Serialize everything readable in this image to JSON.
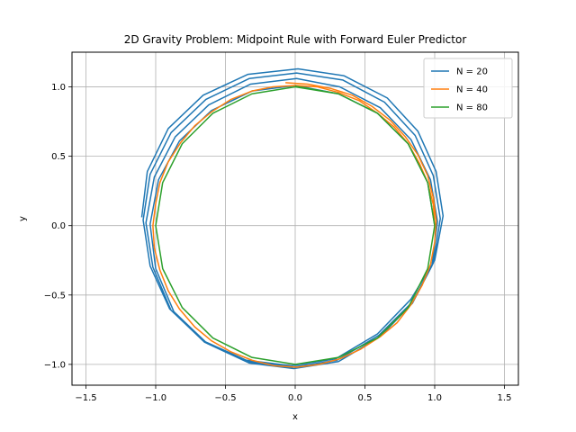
{
  "chart_data": {
    "type": "line",
    "title": "2D Gravity Problem: Midpoint Rule with Forward Euler Predictor",
    "xlabel": "x",
    "ylabel": "y",
    "xlim": [
      -1.6,
      1.6
    ],
    "ylim": [
      -1.15,
      1.25
    ],
    "xticks": [
      -1.5,
      -1.0,
      -0.5,
      0.0,
      0.5,
      1.0,
      1.5
    ],
    "xtick_labels": [
      "−1.5",
      "−1.0",
      "−0.5",
      "0.0",
      "0.5",
      "1.0",
      "1.5"
    ],
    "yticks": [
      -1.0,
      -0.5,
      0.0,
      0.5,
      1.0
    ],
    "ytick_labels": [
      "−1.0",
      "−0.5",
      "0.0",
      "0.5",
      "1.0"
    ],
    "grid": true,
    "legend_position": "top-right",
    "series": [
      {
        "name": "N = 20",
        "color": "#1f77b4",
        "orbit_points": [
          [
            1.0,
            0.0
          ],
          [
            0.95,
            0.31
          ],
          [
            0.81,
            0.59
          ],
          [
            0.59,
            0.81
          ],
          [
            0.31,
            0.95
          ],
          [
            0.0,
            1.01
          ],
          [
            -0.31,
            0.97
          ],
          [
            -0.6,
            0.83
          ],
          [
            -0.83,
            0.61
          ],
          [
            -0.98,
            0.33
          ],
          [
            -1.04,
            0.01
          ],
          [
            -1.0,
            -0.31
          ],
          [
            -0.87,
            -0.62
          ],
          [
            -0.63,
            -0.85
          ],
          [
            -0.33,
            -0.99
          ],
          [
            -0.01,
            -1.03
          ],
          [
            0.31,
            -0.98
          ],
          [
            0.61,
            -0.8
          ],
          [
            0.84,
            -0.56
          ],
          [
            0.98,
            -0.29
          ],
          [
            1.02,
            0.03
          ],
          [
            0.97,
            0.33
          ],
          [
            0.83,
            0.62
          ],
          [
            0.61,
            0.85
          ],
          [
            0.32,
            1.0
          ],
          [
            0.01,
            1.06
          ],
          [
            -0.32,
            1.02
          ],
          [
            -0.62,
            0.87
          ],
          [
            -0.86,
            0.64
          ],
          [
            -1.01,
            0.35
          ],
          [
            -1.07,
            0.02
          ],
          [
            -1.02,
            -0.3
          ],
          [
            -0.89,
            -0.61
          ],
          [
            -0.65,
            -0.84
          ],
          [
            -0.34,
            -0.98
          ],
          [
            -0.02,
            -1.02
          ],
          [
            0.3,
            -0.97
          ],
          [
            0.6,
            -0.79
          ],
          [
            0.84,
            -0.55
          ],
          [
            0.99,
            -0.27
          ],
          [
            1.04,
            0.05
          ],
          [
            0.99,
            0.36
          ],
          [
            0.86,
            0.65
          ],
          [
            0.64,
            0.89
          ],
          [
            0.34,
            1.05
          ],
          [
            0.01,
            1.1
          ],
          [
            -0.33,
            1.06
          ],
          [
            -0.64,
            0.91
          ],
          [
            -0.89,
            0.67
          ],
          [
            -1.04,
            0.37
          ],
          [
            -1.09,
            0.04
          ],
          [
            -1.04,
            -0.29
          ],
          [
            -0.9,
            -0.6
          ],
          [
            -0.66,
            -0.83
          ],
          [
            -0.35,
            -0.97
          ],
          [
            -0.03,
            -1.01
          ],
          [
            0.29,
            -0.96
          ],
          [
            0.59,
            -0.78
          ],
          [
            0.83,
            -0.53
          ],
          [
            1.0,
            -0.25
          ],
          [
            1.06,
            0.07
          ],
          [
            1.01,
            0.39
          ],
          [
            0.88,
            0.68
          ],
          [
            0.66,
            0.92
          ],
          [
            0.35,
            1.08
          ],
          [
            0.02,
            1.13
          ],
          [
            -0.34,
            1.09
          ],
          [
            -0.66,
            0.94
          ],
          [
            -0.91,
            0.7
          ],
          [
            -1.06,
            0.39
          ],
          [
            -1.1,
            0.06
          ]
        ]
      },
      {
        "name": "N = 40",
        "color": "#ff7f0e",
        "orbit_points": [
          [
            1.0,
            0.0
          ],
          [
            0.99,
            0.15
          ],
          [
            0.95,
            0.31
          ],
          [
            0.89,
            0.45
          ],
          [
            0.81,
            0.59
          ],
          [
            0.71,
            0.71
          ],
          [
            0.59,
            0.81
          ],
          [
            0.46,
            0.9
          ],
          [
            0.31,
            0.96
          ],
          [
            0.16,
            1.0
          ],
          [
            0.0,
            1.01
          ],
          [
            -0.16,
            1.0
          ],
          [
            -0.31,
            0.97
          ],
          [
            -0.46,
            0.91
          ],
          [
            -0.6,
            0.82
          ],
          [
            -0.72,
            0.72
          ],
          [
            -0.82,
            0.6
          ],
          [
            -0.91,
            0.46
          ],
          [
            -0.97,
            0.31
          ],
          [
            -1.0,
            0.16
          ],
          [
            -1.02,
            0.0
          ],
          [
            -1.01,
            -0.16
          ],
          [
            -0.97,
            -0.32
          ],
          [
            -0.91,
            -0.47
          ],
          [
            -0.83,
            -0.6
          ],
          [
            -0.72,
            -0.73
          ],
          [
            -0.6,
            -0.83
          ],
          [
            -0.46,
            -0.91
          ],
          [
            -0.31,
            -0.97
          ],
          [
            -0.15,
            -1.01
          ],
          [
            0.01,
            -1.02
          ],
          [
            0.17,
            -1.0
          ],
          [
            0.32,
            -0.96
          ],
          [
            0.47,
            -0.89
          ],
          [
            0.61,
            -0.8
          ],
          [
            0.73,
            -0.7
          ],
          [
            0.83,
            -0.57
          ],
          [
            0.91,
            -0.43
          ],
          [
            0.97,
            -0.28
          ],
          [
            1.0,
            -0.12
          ],
          [
            1.01,
            0.04
          ],
          [
            0.99,
            0.2
          ],
          [
            0.95,
            0.36
          ],
          [
            0.88,
            0.51
          ],
          [
            0.79,
            0.64
          ],
          [
            0.68,
            0.76
          ],
          [
            0.55,
            0.86
          ],
          [
            0.41,
            0.94
          ],
          [
            0.25,
            0.99
          ],
          [
            0.09,
            1.02
          ],
          [
            -0.07,
            1.03
          ]
        ]
      },
      {
        "name": "N = 80",
        "color": "#2ca02c",
        "orbit_points": [
          [
            1.0,
            0.0
          ],
          [
            0.95,
            0.31
          ],
          [
            0.81,
            0.59
          ],
          [
            0.59,
            0.81
          ],
          [
            0.31,
            0.95
          ],
          [
            0.0,
            1.0
          ],
          [
            -0.31,
            0.95
          ],
          [
            -0.59,
            0.81
          ],
          [
            -0.81,
            0.59
          ],
          [
            -0.95,
            0.31
          ],
          [
            -1.0,
            0.0
          ],
          [
            -0.95,
            -0.31
          ],
          [
            -0.81,
            -0.59
          ],
          [
            -0.59,
            -0.81
          ],
          [
            -0.31,
            -0.95
          ],
          [
            0.0,
            -1.0
          ],
          [
            0.31,
            -0.95
          ],
          [
            0.59,
            -0.81
          ],
          [
            0.81,
            -0.59
          ],
          [
            0.95,
            -0.31
          ],
          [
            1.0,
            0.0
          ],
          [
            0.95,
            0.31
          ],
          [
            0.81,
            0.59
          ],
          [
            0.59,
            0.81
          ],
          [
            0.31,
            0.95
          ],
          [
            0.0,
            1.005
          ]
        ]
      }
    ]
  }
}
